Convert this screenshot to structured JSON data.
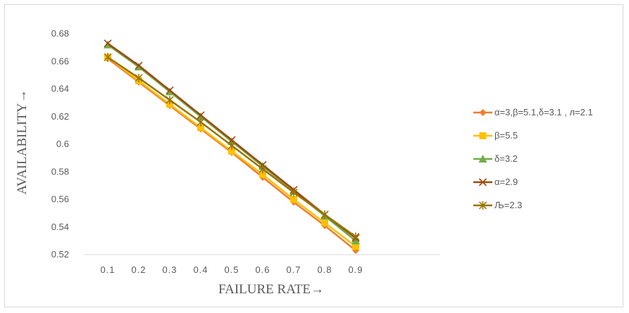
{
  "chart_data": {
    "type": "line",
    "title": "",
    "xlabel": "FAILURE RATE→",
    "ylabel": "AVAILABILITY→",
    "categories": [
      "0.1",
      "0.2",
      "0.3",
      "0.4",
      "0.5",
      "0.6",
      "0.7",
      "0.8",
      "0.9"
    ],
    "x": [
      0.1,
      0.2,
      0.3,
      0.4,
      0.5,
      0.6,
      0.7,
      0.8,
      0.9
    ],
    "ylim": [
      0.52,
      0.68
    ],
    "yticks": [
      "0.52",
      "0.54",
      "0.56",
      "0.58",
      "0.6",
      "0.62",
      "0.64",
      "0.66",
      "0.68"
    ],
    "grid": false,
    "legend_position": "right",
    "series": [
      {
        "name": "α=3,β=5.1,δ=3.1 , л=2.1",
        "color": "#ed7d31",
        "marker": "diamond",
        "values": [
          0.662,
          0.645,
          0.628,
          0.611,
          0.594,
          0.576,
          0.558,
          0.541,
          0.523
        ]
      },
      {
        "name": "β=5.5",
        "color": "#ffc000",
        "marker": "square",
        "values": [
          0.663,
          0.646,
          0.629,
          0.612,
          0.595,
          0.578,
          0.56,
          0.543,
          0.526
        ]
      },
      {
        "name": "δ=3.2",
        "color": "#70ad47",
        "marker": "triangle",
        "values": [
          0.672,
          0.656,
          0.638,
          0.62,
          0.602,
          0.584,
          0.566,
          0.548,
          0.53
        ]
      },
      {
        "name": "α=2.9",
        "color": "#9e480e",
        "marker": "x",
        "values": [
          0.673,
          0.657,
          0.639,
          0.621,
          0.603,
          0.585,
          0.567,
          0.549,
          0.532
        ]
      },
      {
        "name": "Љ=2.3",
        "color": "#997300",
        "marker": "star",
        "values": [
          0.663,
          0.648,
          0.632,
          0.616,
          0.599,
          0.582,
          0.565,
          0.549,
          0.533
        ]
      }
    ]
  }
}
